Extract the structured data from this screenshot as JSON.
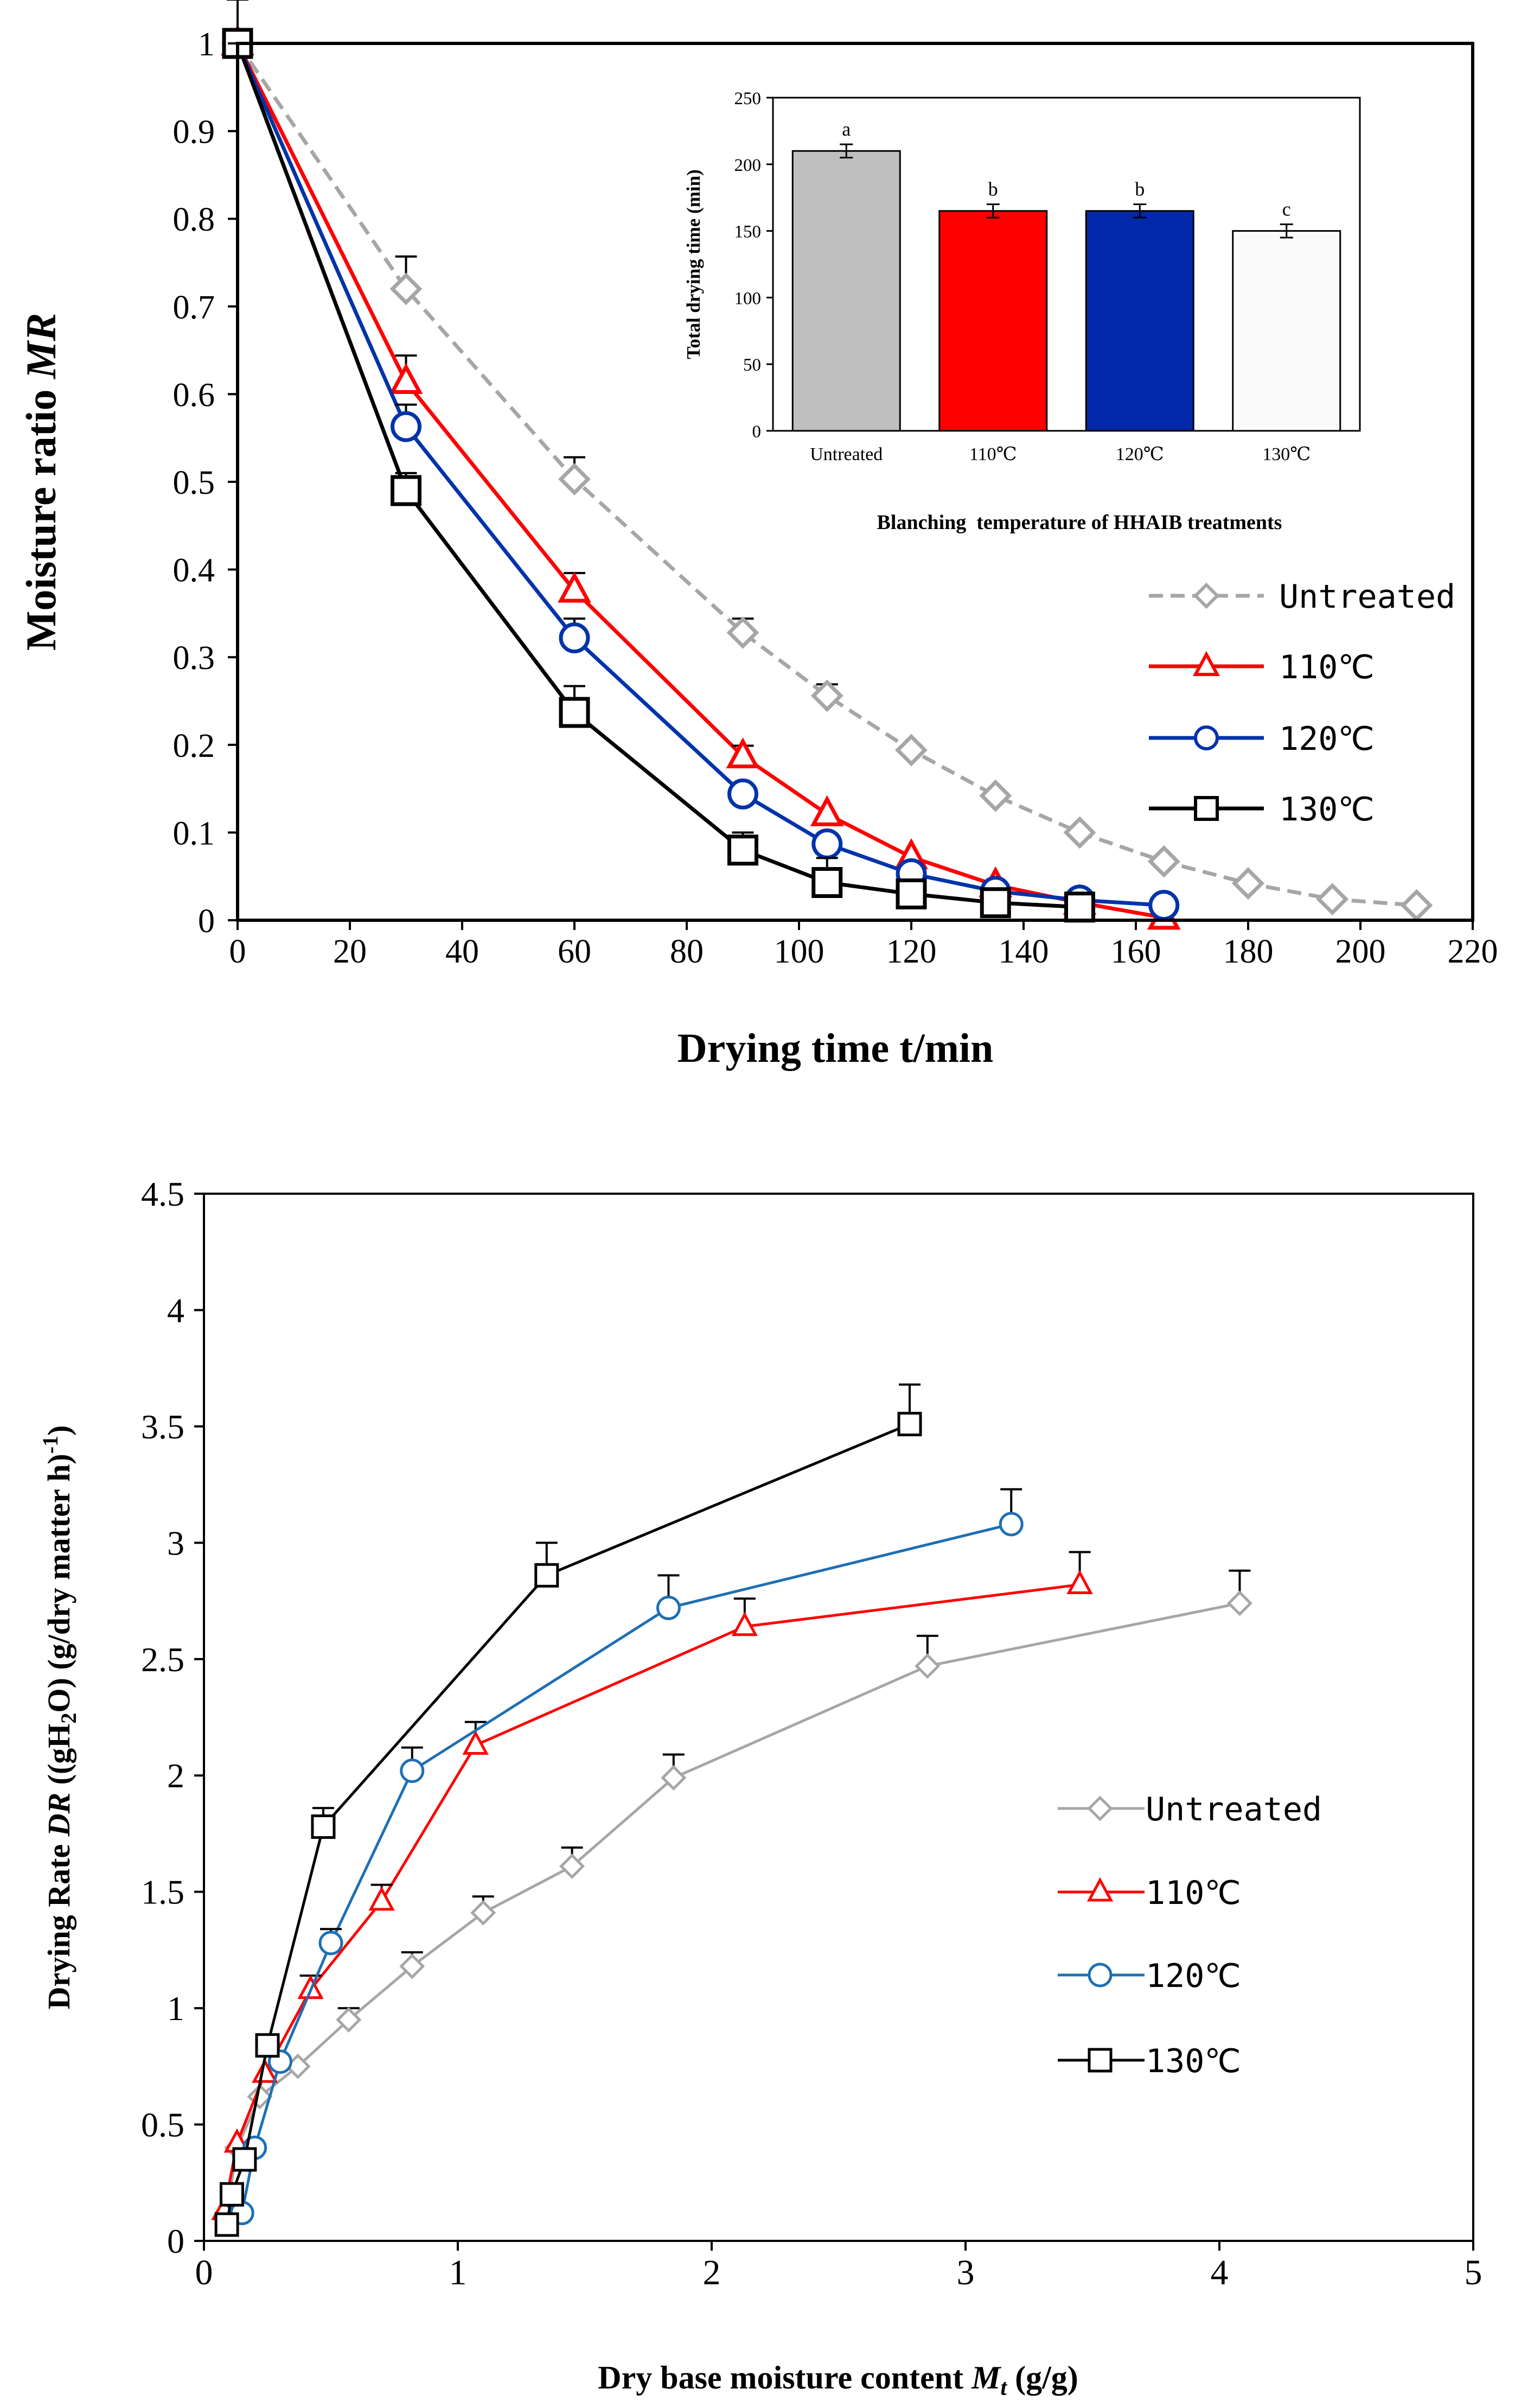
{
  "chart_data": [
    {
      "type": "line",
      "id": "top",
      "xlabel": "Drying time t/min",
      "ylabel_main": "Moisture ratio ",
      "ylabel_italic": "MR",
      "xlim": [
        0,
        220
      ],
      "ylim": [
        0,
        1
      ],
      "x_ticks": [
        0,
        20,
        40,
        60,
        80,
        100,
        120,
        140,
        160,
        180,
        200,
        220
      ],
      "y_ticks": [
        0,
        0.1,
        0.2,
        0.3,
        0.4,
        0.5,
        0.6,
        0.7,
        0.8,
        0.9,
        1
      ],
      "legend": [
        "Untreated",
        "110℃",
        "120℃",
        "130℃"
      ],
      "series": [
        {
          "name": "Untreated",
          "marker": "diamond",
          "color": "#a6a6a6",
          "dashed": true,
          "x": [
            0,
            30,
            60,
            90,
            105,
            120,
            135,
            150,
            165,
            180,
            195,
            210
          ],
          "y": [
            1.0,
            0.72,
            0.503,
            0.328,
            0.256,
            0.194,
            0.142,
            0.1,
            0.067,
            0.042,
            0.024,
            0.017
          ],
          "err": [
            0,
            0.037,
            0.025,
            0.016,
            0.013,
            0,
            0,
            0,
            0,
            0,
            0,
            0
          ]
        },
        {
          "name": "110℃",
          "marker": "triangle",
          "color": "#ff0000",
          "x": [
            0,
            30,
            60,
            90,
            105,
            120,
            135,
            150,
            165
          ],
          "y": [
            1.0,
            0.614,
            0.376,
            0.187,
            0.121,
            0.072,
            0.04,
            0.02,
            0.003
          ],
          "err": [
            0,
            0.03,
            0.02,
            0.012,
            0,
            0,
            0,
            0,
            0
          ]
        },
        {
          "name": "120℃",
          "marker": "circle",
          "color": "#0033aa",
          "x": [
            0,
            30,
            60,
            90,
            105,
            120,
            135,
            150,
            165
          ],
          "y": [
            1.0,
            0.563,
            0.322,
            0.144,
            0.087,
            0.053,
            0.033,
            0.023,
            0.017
          ],
          "err": [
            0,
            0.025,
            0.022,
            0,
            0,
            0,
            0,
            0,
            0
          ]
        },
        {
          "name": "130℃",
          "marker": "square",
          "color": "#000000",
          "x": [
            0,
            30,
            60,
            90,
            105,
            120,
            135,
            150
          ],
          "y": [
            1.0,
            0.49,
            0.237,
            0.08,
            0.043,
            0.03,
            0.02,
            0.015
          ],
          "err": [
            0.05,
            0.02,
            0.03,
            0.02,
            0.028,
            0,
            0,
            0
          ]
        }
      ]
    },
    {
      "type": "bar",
      "id": "inset",
      "ylabel": "Total drying time (min)",
      "xlabel": "Blanching  temperature of HHAIB treatments",
      "ylim": [
        0,
        250
      ],
      "y_ticks": [
        0,
        50,
        100,
        150,
        200,
        250
      ],
      "categories": [
        "Untreated",
        "110℃",
        "120℃",
        "130℃"
      ],
      "values": [
        210,
        165,
        165,
        150
      ],
      "err": [
        5,
        5,
        5,
        5
      ],
      "letters": [
        "a",
        "b",
        "b",
        "c"
      ],
      "colors": [
        "#bfbfbf",
        "#ff0000",
        "#0028a8",
        "#fafafa"
      ]
    },
    {
      "type": "line",
      "id": "bottom",
      "xlabel_pre": "Dry base moisture content ",
      "xlabel_italic": "M",
      "xlabel_sub": "t",
      "xlabel_post": " (g/g)",
      "ylabel_a": "Drying Rate ",
      "ylabel_b": "DR",
      "ylabel_c": " ((gH",
      "ylabel_d": "2",
      "ylabel_e": "O) (g/dry matter h)",
      "ylabel_f": "-1",
      "ylabel_g": ")",
      "xlim": [
        0,
        5
      ],
      "ylim": [
        0,
        4.5
      ],
      "x_ticks": [
        0,
        1,
        2,
        3,
        4,
        5
      ],
      "y_ticks": [
        0,
        0.5,
        1,
        1.5,
        2,
        2.5,
        3,
        3.5,
        4,
        4.5
      ],
      "legend": [
        "Untreated",
        "110℃",
        "120℃",
        "130℃"
      ],
      "series": [
        {
          "name": "Untreated",
          "marker": "diamond",
          "color": "#a6a6a6",
          "x": [
            4.08,
            2.85,
            1.85,
            1.45,
            1.1,
            0.82,
            0.57,
            0.37,
            0.22,
            0.13,
            0.09
          ],
          "y": [
            2.74,
            2.47,
            1.99,
            1.61,
            1.41,
            1.18,
            0.95,
            0.75,
            0.62,
            0.4,
            0.12
          ],
          "err": [
            0.14,
            0.13,
            0.1,
            0.08,
            0.07,
            0.06,
            0.05,
            0,
            0,
            0,
            0
          ]
        },
        {
          "name": "110℃",
          "marker": "triangle",
          "color": "#ff0000",
          "x": [
            3.45,
            2.13,
            1.07,
            0.7,
            0.42,
            0.24,
            0.13,
            0.08
          ],
          "y": [
            2.82,
            2.64,
            2.13,
            1.46,
            1.08,
            0.72,
            0.42,
            0.13
          ],
          "err": [
            0.14,
            0.12,
            0.1,
            0.07,
            0.06,
            0,
            0,
            0
          ]
        },
        {
          "name": "120℃",
          "marker": "circle",
          "color": "#1f6fb4",
          "x": [
            3.18,
            1.83,
            0.82,
            0.5,
            0.3,
            0.2,
            0.15
          ],
          "y": [
            3.08,
            2.72,
            2.02,
            1.28,
            0.77,
            0.4,
            0.12
          ],
          "err": [
            0.15,
            0.14,
            0.1,
            0.06,
            0,
            0,
            0
          ]
        },
        {
          "name": "130℃",
          "marker": "square",
          "color": "#000000",
          "x": [
            2.78,
            1.35,
            0.47,
            0.25,
            0.16,
            0.11,
            0.09
          ],
          "y": [
            3.51,
            2.86,
            1.78,
            0.84,
            0.35,
            0.2,
            0.07
          ],
          "err": [
            0.17,
            0.14,
            0.08,
            0,
            0,
            0,
            0
          ]
        }
      ]
    }
  ]
}
